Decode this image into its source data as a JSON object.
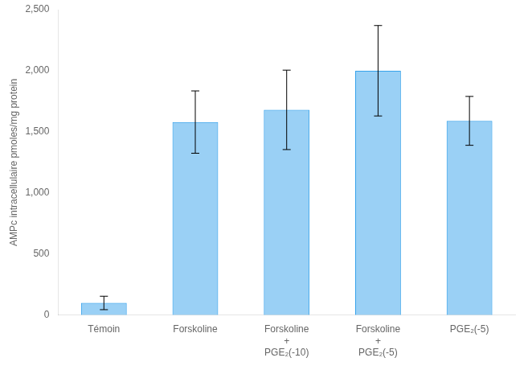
{
  "chart_data": {
    "type": "bar",
    "categories": [
      "Témoin",
      "Forskoline",
      "Forskoline\n+\nPGE₂(-10)",
      "Forskoline\n+\nPGE₂(-5)",
      "PGE₂(-5)"
    ],
    "values": [
      100,
      1580,
      1680,
      2000,
      1590
    ],
    "errors": [
      55,
      255,
      325,
      370,
      200
    ],
    "ylabel": "AMPc intracellulaire pmoles/mg protein",
    "ylim": [
      0,
      2500
    ],
    "yticks": [
      0,
      500,
      {
        "value": 1000,
        "label": "1,000"
      },
      {
        "value": 1500,
        "label": "1,500"
      },
      {
        "value": 2000,
        "label": "2,000"
      },
      {
        "value": 2500,
        "label": "2,500"
      }
    ],
    "grid": false
  }
}
